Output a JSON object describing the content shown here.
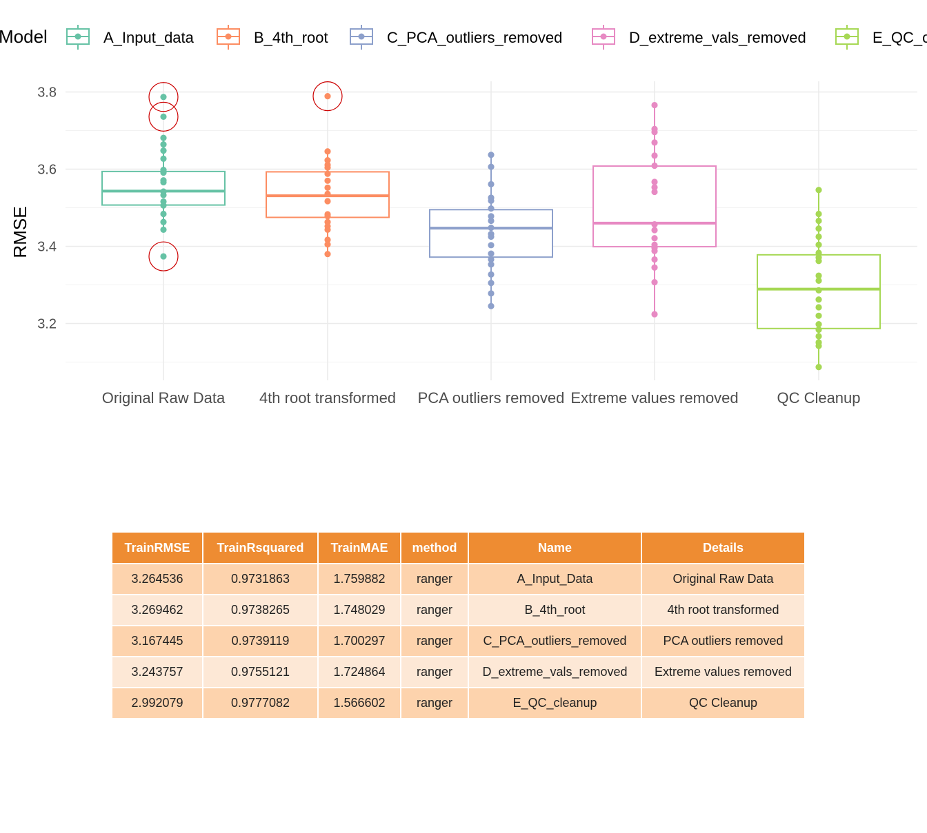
{
  "chart_data": {
    "type": "box",
    "legend_title": "Model",
    "legend_position": "top",
    "xlabel": "",
    "ylabel": "RMSE",
    "ylim": [
      3.06,
      3.83
    ],
    "yticks": [
      3.2,
      3.4,
      3.6,
      3.8
    ],
    "grid": true,
    "categories": [
      "Original Raw Data",
      "4th root transformed",
      "PCA outliers removed",
      "Extreme values removed",
      "QC Cleanup"
    ],
    "series": [
      {
        "name": "A_Input_data",
        "color": "#66c2a5",
        "q1": 3.507,
        "median": 3.543,
        "q3": 3.594,
        "points": [
          3.787,
          3.736,
          3.681,
          3.664,
          3.648,
          3.627,
          3.598,
          3.591,
          3.571,
          3.566,
          3.542,
          3.533,
          3.516,
          3.506,
          3.484,
          3.463,
          3.443,
          3.374
        ],
        "outliers": [
          3.787,
          3.736,
          3.374
        ]
      },
      {
        "name": "B_4th_root",
        "color": "#fc8d62",
        "q1": 3.475,
        "median": 3.531,
        "q3": 3.593,
        "points": [
          3.789,
          3.646,
          3.623,
          3.611,
          3.604,
          3.588,
          3.57,
          3.552,
          3.536,
          3.517,
          3.483,
          3.478,
          3.463,
          3.452,
          3.443,
          3.417,
          3.405,
          3.38
        ],
        "outliers": [
          3.789
        ]
      },
      {
        "name": "C_PCA_outliers_removed",
        "color": "#8da0cb",
        "q1": 3.372,
        "median": 3.447,
        "q3": 3.495,
        "points": [
          3.637,
          3.606,
          3.561,
          3.526,
          3.518,
          3.498,
          3.478,
          3.466,
          3.448,
          3.432,
          3.425,
          3.403,
          3.381,
          3.366,
          3.353,
          3.327,
          3.305,
          3.278,
          3.245
        ],
        "outliers": []
      },
      {
        "name": "D_extreme_vals_removed",
        "color": "#e78ac3",
        "q1": 3.399,
        "median": 3.46,
        "q3": 3.608,
        "points": [
          3.766,
          3.704,
          3.696,
          3.669,
          3.635,
          3.609,
          3.567,
          3.553,
          3.541,
          3.457,
          3.442,
          3.421,
          3.404,
          3.396,
          3.388,
          3.366,
          3.345,
          3.307,
          3.224
        ],
        "outliers": []
      },
      {
        "name": "E_QC_cleanup",
        "color": "#a6d854",
        "q1": 3.187,
        "median": 3.289,
        "q3": 3.378,
        "points": [
          3.546,
          3.484,
          3.466,
          3.446,
          3.425,
          3.404,
          3.383,
          3.371,
          3.362,
          3.324,
          3.311,
          3.286,
          3.262,
          3.242,
          3.22,
          3.198,
          3.184,
          3.167,
          3.151,
          3.142,
          3.087
        ],
        "outliers": []
      }
    ]
  },
  "table": {
    "columns": [
      "TrainRMSE",
      "TrainRsquared",
      "TrainMAE",
      "method",
      "Name",
      "Details"
    ],
    "rows": [
      [
        "3.264536",
        "0.9731863",
        "1.759882",
        "ranger",
        "A_Input_Data",
        "Original Raw Data"
      ],
      [
        "3.269462",
        "0.9738265",
        "1.748029",
        "ranger",
        "B_4th_root",
        "4th root transformed"
      ],
      [
        "3.167445",
        "0.9739119",
        "1.700297",
        "ranger",
        "C_PCA_outliers_removed",
        "PCA outliers removed"
      ],
      [
        "3.243757",
        "0.9755121",
        "1.724864",
        "ranger",
        "D_extreme_vals_removed",
        "Extreme values removed"
      ],
      [
        "2.992079",
        "0.9777082",
        "1.566602",
        "ranger",
        "E_QC_cleanup",
        "QC Cleanup"
      ]
    ]
  },
  "colors": {
    "header_bg": "#ee8c32",
    "row_odd": "#fdd3ad",
    "row_even": "#fde8d6",
    "outlier_ring": "#cc0000",
    "grid": "#ebebeb"
  }
}
